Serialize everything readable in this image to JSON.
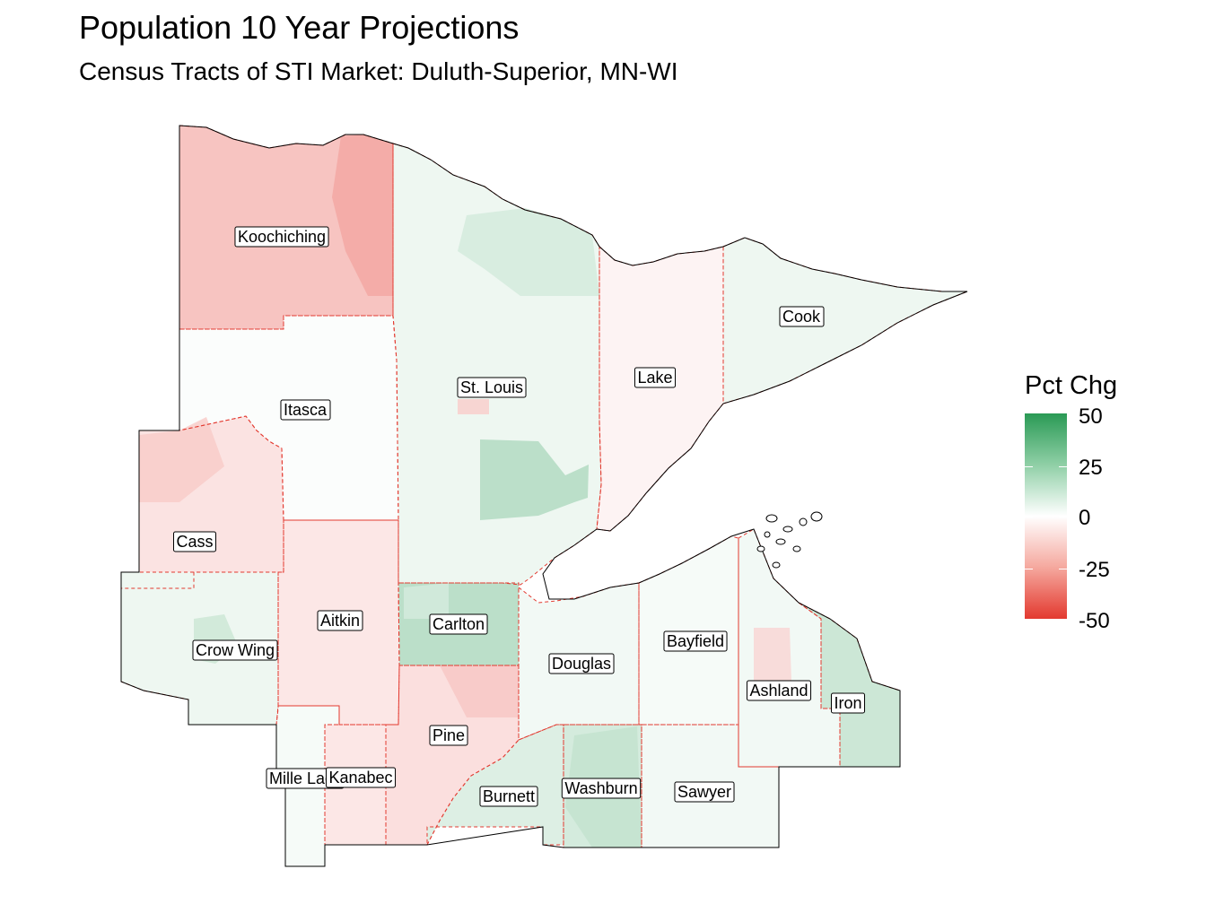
{
  "title": "Population 10 Year Projections",
  "subtitle": "Census Tracts of STI Market: Duluth-Superior, MN-WI",
  "legend": {
    "title": "Pct Chg",
    "labels": [
      "50",
      "25",
      "0",
      "-25",
      "-50"
    ],
    "high_color": "#2a9a55",
    "mid_color": "#ffffff",
    "low_color": "#e3392f"
  },
  "counties": [
    {
      "name": "Koochiching",
      "state": "MN",
      "tone": -15
    },
    {
      "name": "Itasca",
      "state": "MN",
      "tone": 1
    },
    {
      "name": "St. Louis",
      "state": "MN",
      "tone": 4
    },
    {
      "name": "Lake",
      "state": "MN",
      "tone": -3
    },
    {
      "name": "Cook",
      "state": "MN",
      "tone": 4
    },
    {
      "name": "Cass",
      "state": "MN",
      "tone": -7
    },
    {
      "name": "Crow Wing",
      "state": "MN",
      "tone": 4
    },
    {
      "name": "Aitkin",
      "state": "MN",
      "tone": -6
    },
    {
      "name": "Carlton",
      "state": "MN",
      "tone": 16
    },
    {
      "name": "Pine",
      "state": "MN",
      "tone": -8
    },
    {
      "name": "Mille Lacs",
      "state": "MN",
      "tone": 2
    },
    {
      "name": "Kanabec",
      "state": "MN",
      "tone": -6
    },
    {
      "name": "Douglas",
      "state": "WI",
      "tone": 3
    },
    {
      "name": "Bayfield",
      "state": "WI",
      "tone": 2
    },
    {
      "name": "Ashland",
      "state": "WI",
      "tone": 3
    },
    {
      "name": "Iron",
      "state": "WI",
      "tone": 12
    },
    {
      "name": "Burnett",
      "state": "WI",
      "tone": 8
    },
    {
      "name": "Washburn",
      "state": "WI",
      "tone": 10
    },
    {
      "name": "Sawyer",
      "state": "WI",
      "tone": 3
    }
  ]
}
